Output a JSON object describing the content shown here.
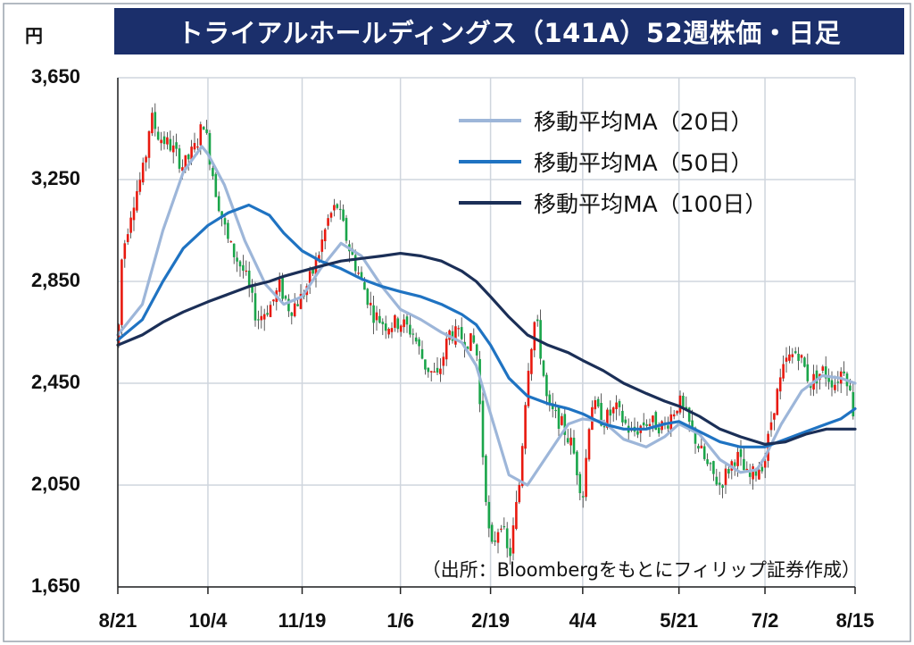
{
  "title": "トライアルホールディングス（141A）52週株価・日足",
  "unit_label": "円",
  "source_note": "（出所：Bloombergをもとにフィリップ証券作成）",
  "colors": {
    "title_bg": "#1b2f6b",
    "up": "#e8190f",
    "down": "#1aa54a",
    "ma20": "#9db6d9",
    "ma50": "#1f73c2",
    "ma100": "#1b2f57",
    "grid": "#cfd5dd"
  },
  "chart_data": {
    "type": "line",
    "subtype": "candlestick-with-moving-averages",
    "ylim": [
      1650,
      3650
    ],
    "yticks": [
      "3,650",
      "3,250",
      "2,850",
      "2,450",
      "2,050",
      "1,650"
    ],
    "ytick_values": [
      3650,
      3250,
      2850,
      2450,
      2050,
      1650
    ],
    "xticks": [
      "8/21",
      "10/4",
      "11/19",
      "1/6",
      "2/19",
      "4/4",
      "5/21",
      "7/2",
      "8/15"
    ],
    "grid": true,
    "legend_position": "top-right",
    "series": [
      {
        "name": "移動平均MA（20日）",
        "color_key": "ma20",
        "points": [
          [
            "8/21",
            2640
          ],
          [
            "9/2",
            2760
          ],
          [
            "9/12",
            3050
          ],
          [
            "9/22",
            3280
          ],
          [
            "10/1",
            3380
          ],
          [
            "10/4",
            3350
          ],
          [
            "10/12",
            3230
          ],
          [
            "10/22",
            3010
          ],
          [
            "11/1",
            2840
          ],
          [
            "11/10",
            2760
          ],
          [
            "11/19",
            2790
          ],
          [
            "11/28",
            2900
          ],
          [
            "12/8",
            3000
          ],
          [
            "12/18",
            2950
          ],
          [
            "12/28",
            2830
          ],
          [
            "1/6",
            2740
          ],
          [
            "1/16",
            2700
          ],
          [
            "1/26",
            2650
          ],
          [
            "2/5",
            2610
          ],
          [
            "2/12",
            2520
          ],
          [
            "2/19",
            2330
          ],
          [
            "2/28",
            2090
          ],
          [
            "3/8",
            2050
          ],
          [
            "3/18",
            2170
          ],
          [
            "3/28",
            2290
          ],
          [
            "4/4",
            2310
          ],
          [
            "4/14",
            2300
          ],
          [
            "4/24",
            2230
          ],
          [
            "5/5",
            2200
          ],
          [
            "5/14",
            2240
          ],
          [
            "5/21",
            2290
          ],
          [
            "5/31",
            2250
          ],
          [
            "6/10",
            2150
          ],
          [
            "6/20",
            2100
          ],
          [
            "6/28",
            2110
          ],
          [
            "7/2",
            2160
          ],
          [
            "7/10",
            2290
          ],
          [
            "7/20",
            2420
          ],
          [
            "7/30",
            2480
          ],
          [
            "8/8",
            2470
          ],
          [
            "8/15",
            2450
          ]
        ]
      },
      {
        "name": "移動平均MA（50日）",
        "color_key": "ma50",
        "points": [
          [
            "8/21",
            2620
          ],
          [
            "9/2",
            2700
          ],
          [
            "9/12",
            2850
          ],
          [
            "9/22",
            2980
          ],
          [
            "10/4",
            3070
          ],
          [
            "10/14",
            3120
          ],
          [
            "10/24",
            3150
          ],
          [
            "11/3",
            3110
          ],
          [
            "11/10",
            3040
          ],
          [
            "11/19",
            2970
          ],
          [
            "11/28",
            2930
          ],
          [
            "12/8",
            2900
          ],
          [
            "12/18",
            2860
          ],
          [
            "12/28",
            2830
          ],
          [
            "1/6",
            2810
          ],
          [
            "1/16",
            2790
          ],
          [
            "1/26",
            2760
          ],
          [
            "2/5",
            2720
          ],
          [
            "2/12",
            2680
          ],
          [
            "2/19",
            2600
          ],
          [
            "2/28",
            2470
          ],
          [
            "3/8",
            2400
          ],
          [
            "3/18",
            2370
          ],
          [
            "3/28",
            2350
          ],
          [
            "4/4",
            2330
          ],
          [
            "4/14",
            2290
          ],
          [
            "4/24",
            2270
          ],
          [
            "5/5",
            2270
          ],
          [
            "5/14",
            2290
          ],
          [
            "5/21",
            2300
          ],
          [
            "5/31",
            2260
          ],
          [
            "6/10",
            2220
          ],
          [
            "6/20",
            2200
          ],
          [
            "7/2",
            2200
          ],
          [
            "7/12",
            2230
          ],
          [
            "7/22",
            2260
          ],
          [
            "8/1",
            2290
          ],
          [
            "8/8",
            2310
          ],
          [
            "8/15",
            2350
          ]
        ]
      },
      {
        "name": "移動平均MA（100日）",
        "color_key": "ma100",
        "points": [
          [
            "8/21",
            2600
          ],
          [
            "9/2",
            2640
          ],
          [
            "9/12",
            2690
          ],
          [
            "9/22",
            2730
          ],
          [
            "10/4",
            2770
          ],
          [
            "10/14",
            2800
          ],
          [
            "10/24",
            2830
          ],
          [
            "11/3",
            2850
          ],
          [
            "11/10",
            2870
          ],
          [
            "11/19",
            2890
          ],
          [
            "11/28",
            2910
          ],
          [
            "12/8",
            2930
          ],
          [
            "12/18",
            2940
          ],
          [
            "12/28",
            2950
          ],
          [
            "1/6",
            2960
          ],
          [
            "1/16",
            2950
          ],
          [
            "1/26",
            2930
          ],
          [
            "2/5",
            2890
          ],
          [
            "2/12",
            2850
          ],
          [
            "2/19",
            2790
          ],
          [
            "2/28",
            2710
          ],
          [
            "3/8",
            2640
          ],
          [
            "3/18",
            2600
          ],
          [
            "3/28",
            2570
          ],
          [
            "4/4",
            2540
          ],
          [
            "4/14",
            2500
          ],
          [
            "4/24",
            2450
          ],
          [
            "5/5",
            2410
          ],
          [
            "5/14",
            2380
          ],
          [
            "5/21",
            2360
          ],
          [
            "5/31",
            2320
          ],
          [
            "6/10",
            2270
          ],
          [
            "6/20",
            2240
          ],
          [
            "7/2",
            2210
          ],
          [
            "7/12",
            2220
          ],
          [
            "7/22",
            2250
          ],
          [
            "8/1",
            2270
          ],
          [
            "8/8",
            2270
          ],
          [
            "8/15",
            2270
          ]
        ]
      }
    ],
    "price_path": [
      [
        "8/21",
        2600
      ],
      [
        "8/23",
        2950
      ],
      [
        "8/28",
        3150
      ],
      [
        "9/3",
        3300
      ],
      [
        "9/6",
        3500
      ],
      [
        "9/10",
        3420
      ],
      [
        "9/16",
        3380
      ],
      [
        "9/22",
        3300
      ],
      [
        "9/28",
        3380
      ],
      [
        "10/2",
        3480
      ],
      [
        "10/4",
        3380
      ],
      [
        "10/8",
        3200
      ],
      [
        "10/14",
        3000
      ],
      [
        "10/22",
        2880
      ],
      [
        "10/28",
        2700
      ],
      [
        "11/4",
        2760
      ],
      [
        "11/8",
        2830
      ],
      [
        "11/13",
        2740
      ],
      [
        "11/19",
        2790
      ],
      [
        "11/25",
        2900
      ],
      [
        "12/2",
        3100
      ],
      [
        "12/6",
        3150
      ],
      [
        "12/12",
        2980
      ],
      [
        "12/18",
        2850
      ],
      [
        "12/24",
        2720
      ],
      [
        "12/30",
        2680
      ],
      [
        "1/6",
        2690
      ],
      [
        "1/12",
        2650
      ],
      [
        "1/18",
        2520
      ],
      [
        "1/24",
        2470
      ],
      [
        "1/30",
        2650
      ],
      [
        "2/5",
        2630
      ],
      [
        "2/12",
        2600
      ],
      [
        "2/15",
        2200
      ],
      [
        "2/19",
        1780
      ],
      [
        "2/24",
        1920
      ],
      [
        "2/28",
        1750
      ],
      [
        "3/4",
        2050
      ],
      [
        "3/8",
        2500
      ],
      [
        "3/12",
        2720
      ],
      [
        "3/18",
        2350
      ],
      [
        "3/24",
        2300
      ],
      [
        "3/30",
        2200
      ],
      [
        "4/4",
        2000
      ],
      [
        "4/8",
        2380
      ],
      [
        "4/14",
        2300
      ],
      [
        "4/20",
        2350
      ],
      [
        "4/28",
        2250
      ],
      [
        "5/5",
        2300
      ],
      [
        "5/14",
        2280
      ],
      [
        "5/21",
        2380
      ],
      [
        "5/28",
        2250
      ],
      [
        "6/4",
        2120
      ],
      [
        "6/10",
        2050
      ],
      [
        "6/18",
        2170
      ],
      [
        "6/24",
        2070
      ],
      [
        "7/2",
        2150
      ],
      [
        "7/6",
        2350
      ],
      [
        "7/12",
        2530
      ],
      [
        "7/18",
        2580
      ],
      [
        "7/24",
        2450
      ],
      [
        "7/30",
        2500
      ],
      [
        "8/5",
        2450
      ],
      [
        "8/10",
        2520
      ],
      [
        "8/15",
        2300
      ]
    ]
  }
}
